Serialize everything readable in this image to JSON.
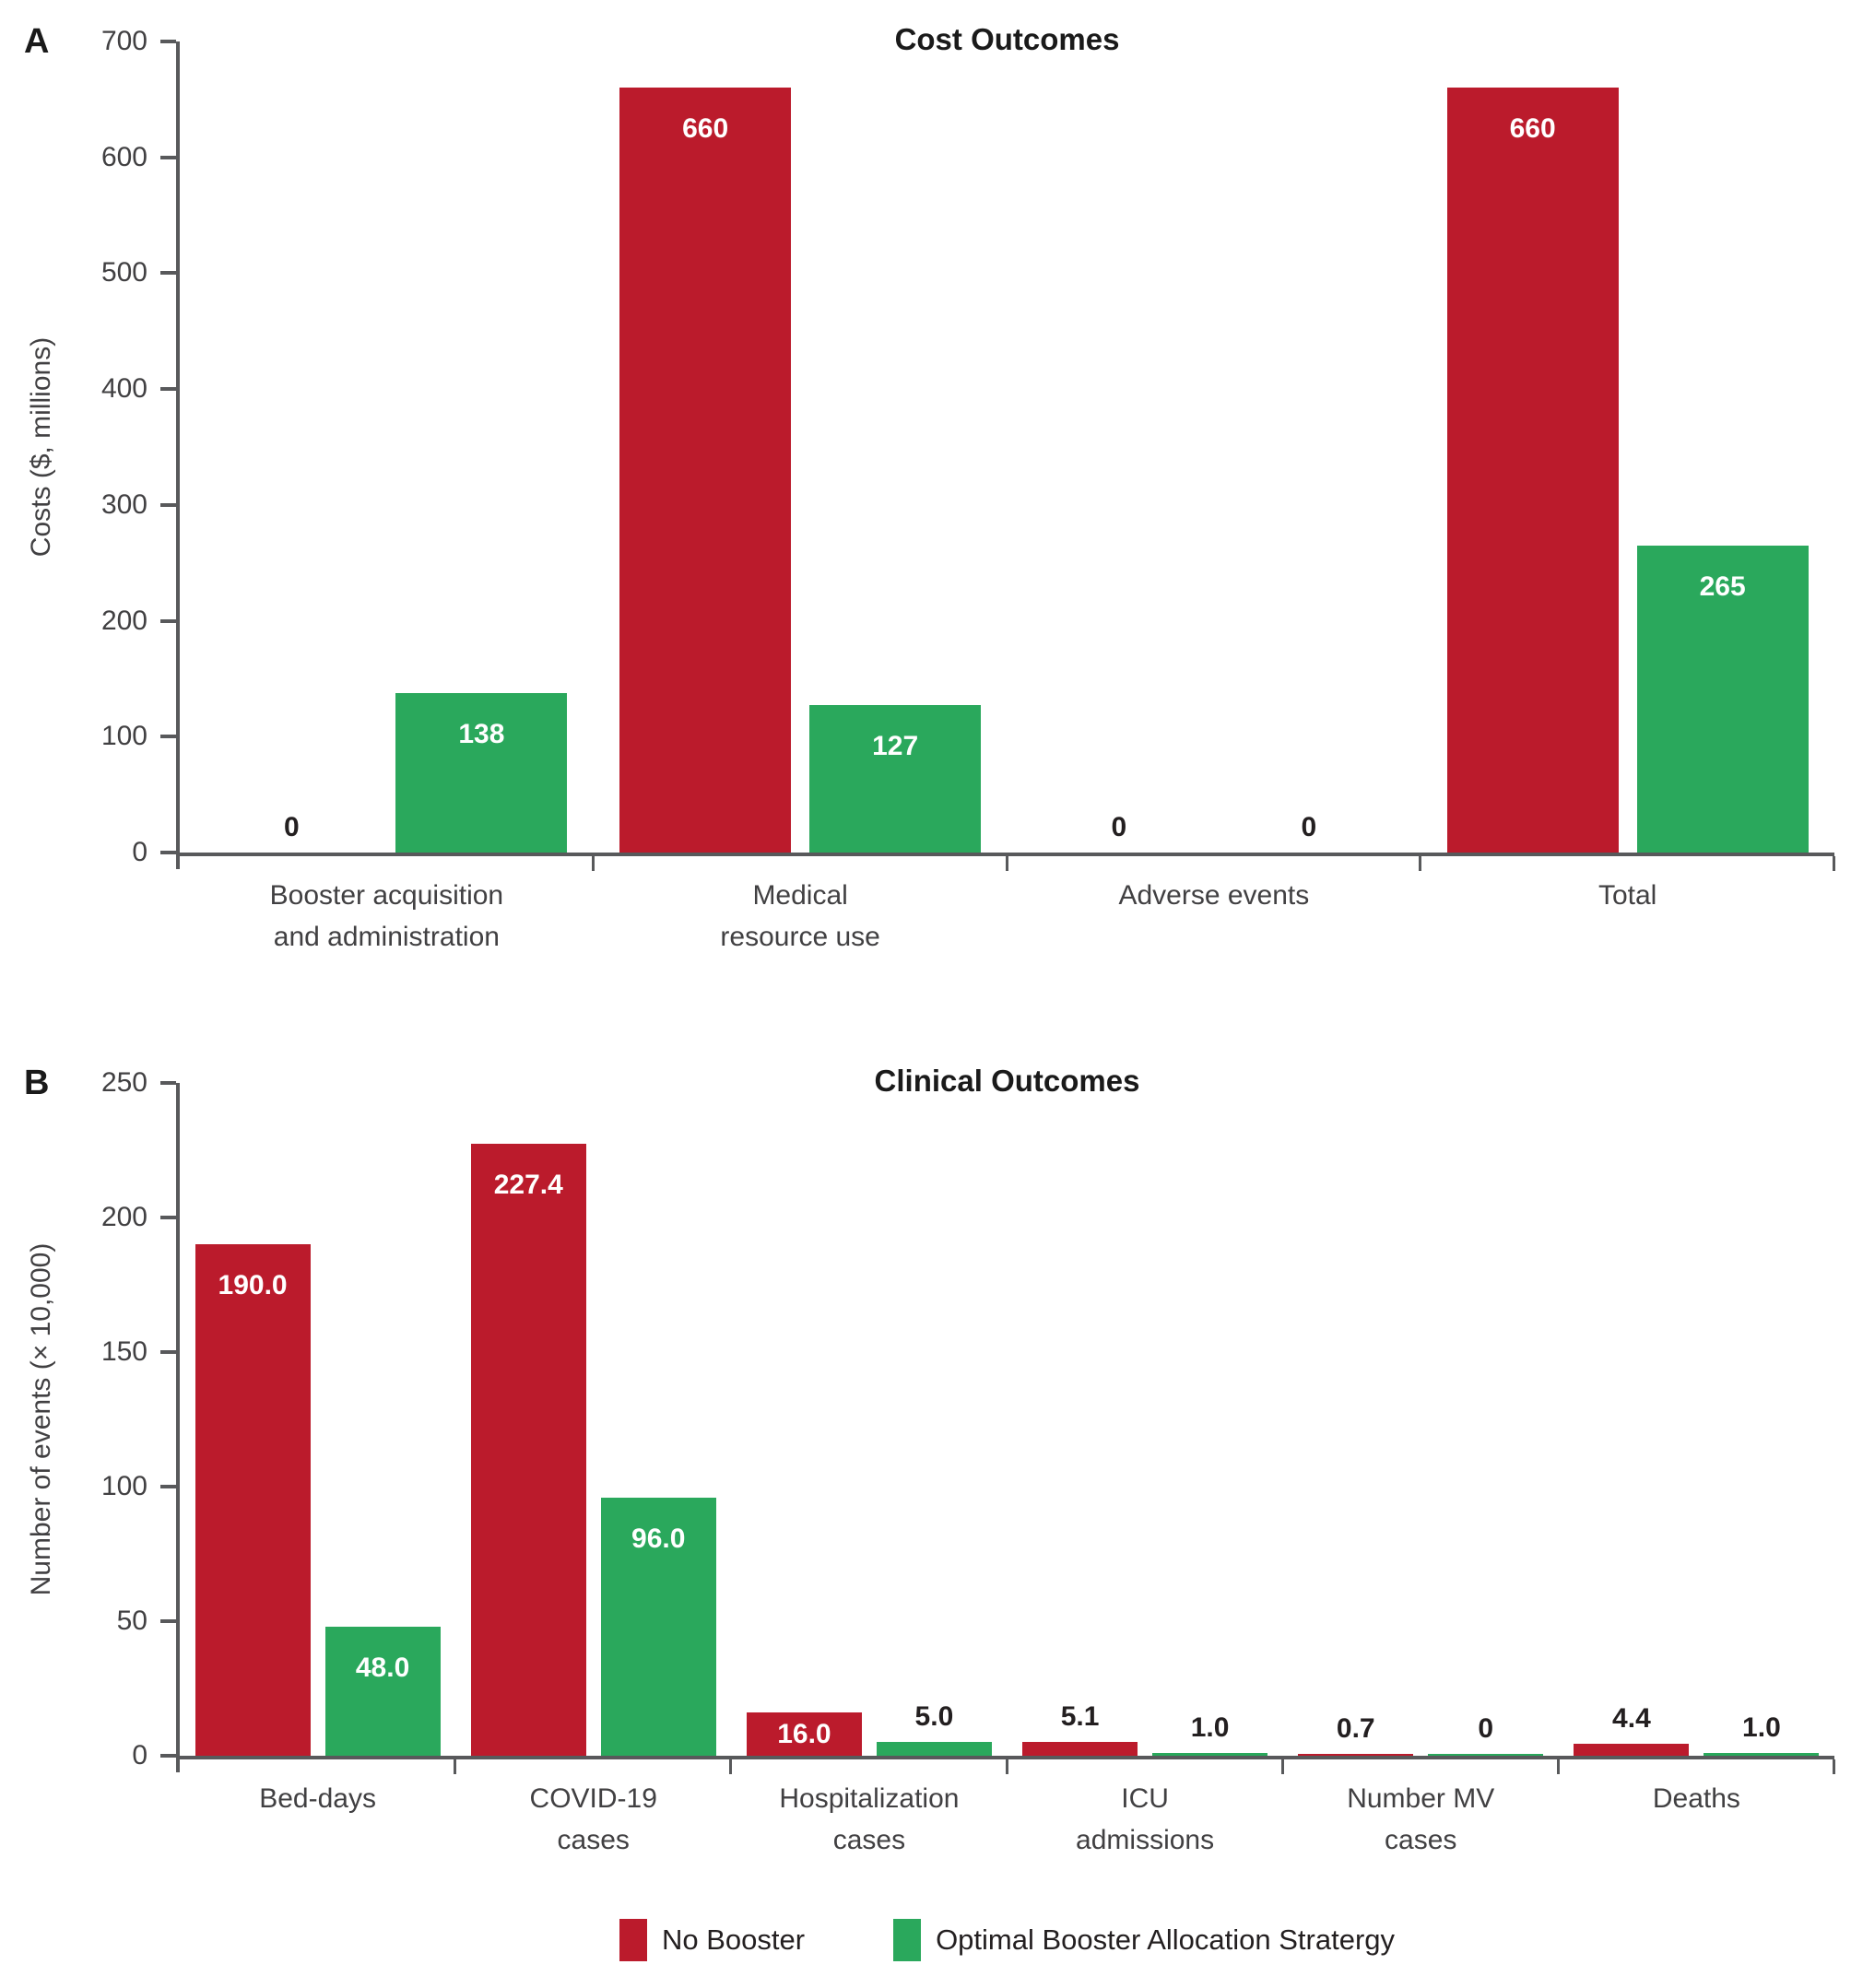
{
  "panels": [
    {
      "letter": "A"
    },
    {
      "letter": "B"
    }
  ],
  "legend": {
    "items": [
      {
        "key": "no_booster",
        "label": "No Booster",
        "color": "#bb1b2c"
      },
      {
        "key": "optimal",
        "label": "Optimal Booster Allocation Stratergy",
        "color": "#2aa85c"
      }
    ]
  },
  "chart_data": [
    {
      "type": "bar",
      "panel": "A",
      "title": "Cost Outcomes",
      "xlabel": "",
      "ylabel": "Costs ($, millions)",
      "ylim": [
        0,
        700
      ],
      "yticks": [
        0,
        100,
        200,
        300,
        400,
        500,
        600,
        700
      ],
      "grid": false,
      "legend_position": "bottom",
      "categories": [
        "Booster acquisition\nand administration",
        "Medical\nresource use",
        "Adverse events",
        "Total"
      ],
      "series": [
        {
          "key": "no_booster",
          "name": "No Booster",
          "color": "#bb1b2c",
          "values": [
            0,
            660,
            0,
            660
          ],
          "labels": [
            "0",
            "660",
            "0",
            "660"
          ]
        },
        {
          "key": "optimal",
          "name": "Optimal Booster Allocation Stratergy",
          "color": "#2aa85c",
          "values": [
            138,
            127,
            0,
            265
          ],
          "labels": [
            "138",
            "127",
            "0",
            "265"
          ]
        }
      ]
    },
    {
      "type": "bar",
      "panel": "B",
      "title": "Clinical Outcomes",
      "xlabel": "",
      "ylabel": "Number of events (× 10,000)",
      "ylim": [
        0,
        250
      ],
      "yticks": [
        0,
        50,
        100,
        150,
        200,
        250
      ],
      "grid": false,
      "legend_position": "bottom",
      "categories": [
        "Bed-days",
        "COVID-19\ncases",
        "Hospitalization\ncases",
        "ICU\nadmissions",
        "Number MV\ncases",
        "Deaths"
      ],
      "series": [
        {
          "key": "no_booster",
          "name": "No Booster",
          "color": "#bb1b2c",
          "values": [
            190.0,
            227.4,
            16.0,
            5.1,
            0.7,
            4.4
          ],
          "labels": [
            "190.0",
            "227.4",
            "16.0",
            "5.1",
            "0.7",
            "4.4"
          ]
        },
        {
          "key": "optimal",
          "name": "Optimal Booster Allocation Stratergy",
          "color": "#2aa85c",
          "values": [
            48.0,
            96.0,
            5.0,
            1.0,
            0,
            1.0
          ],
          "labels": [
            "48.0",
            "96.0",
            "5.0",
            "1.0",
            "0",
            "1.0"
          ]
        }
      ]
    }
  ]
}
